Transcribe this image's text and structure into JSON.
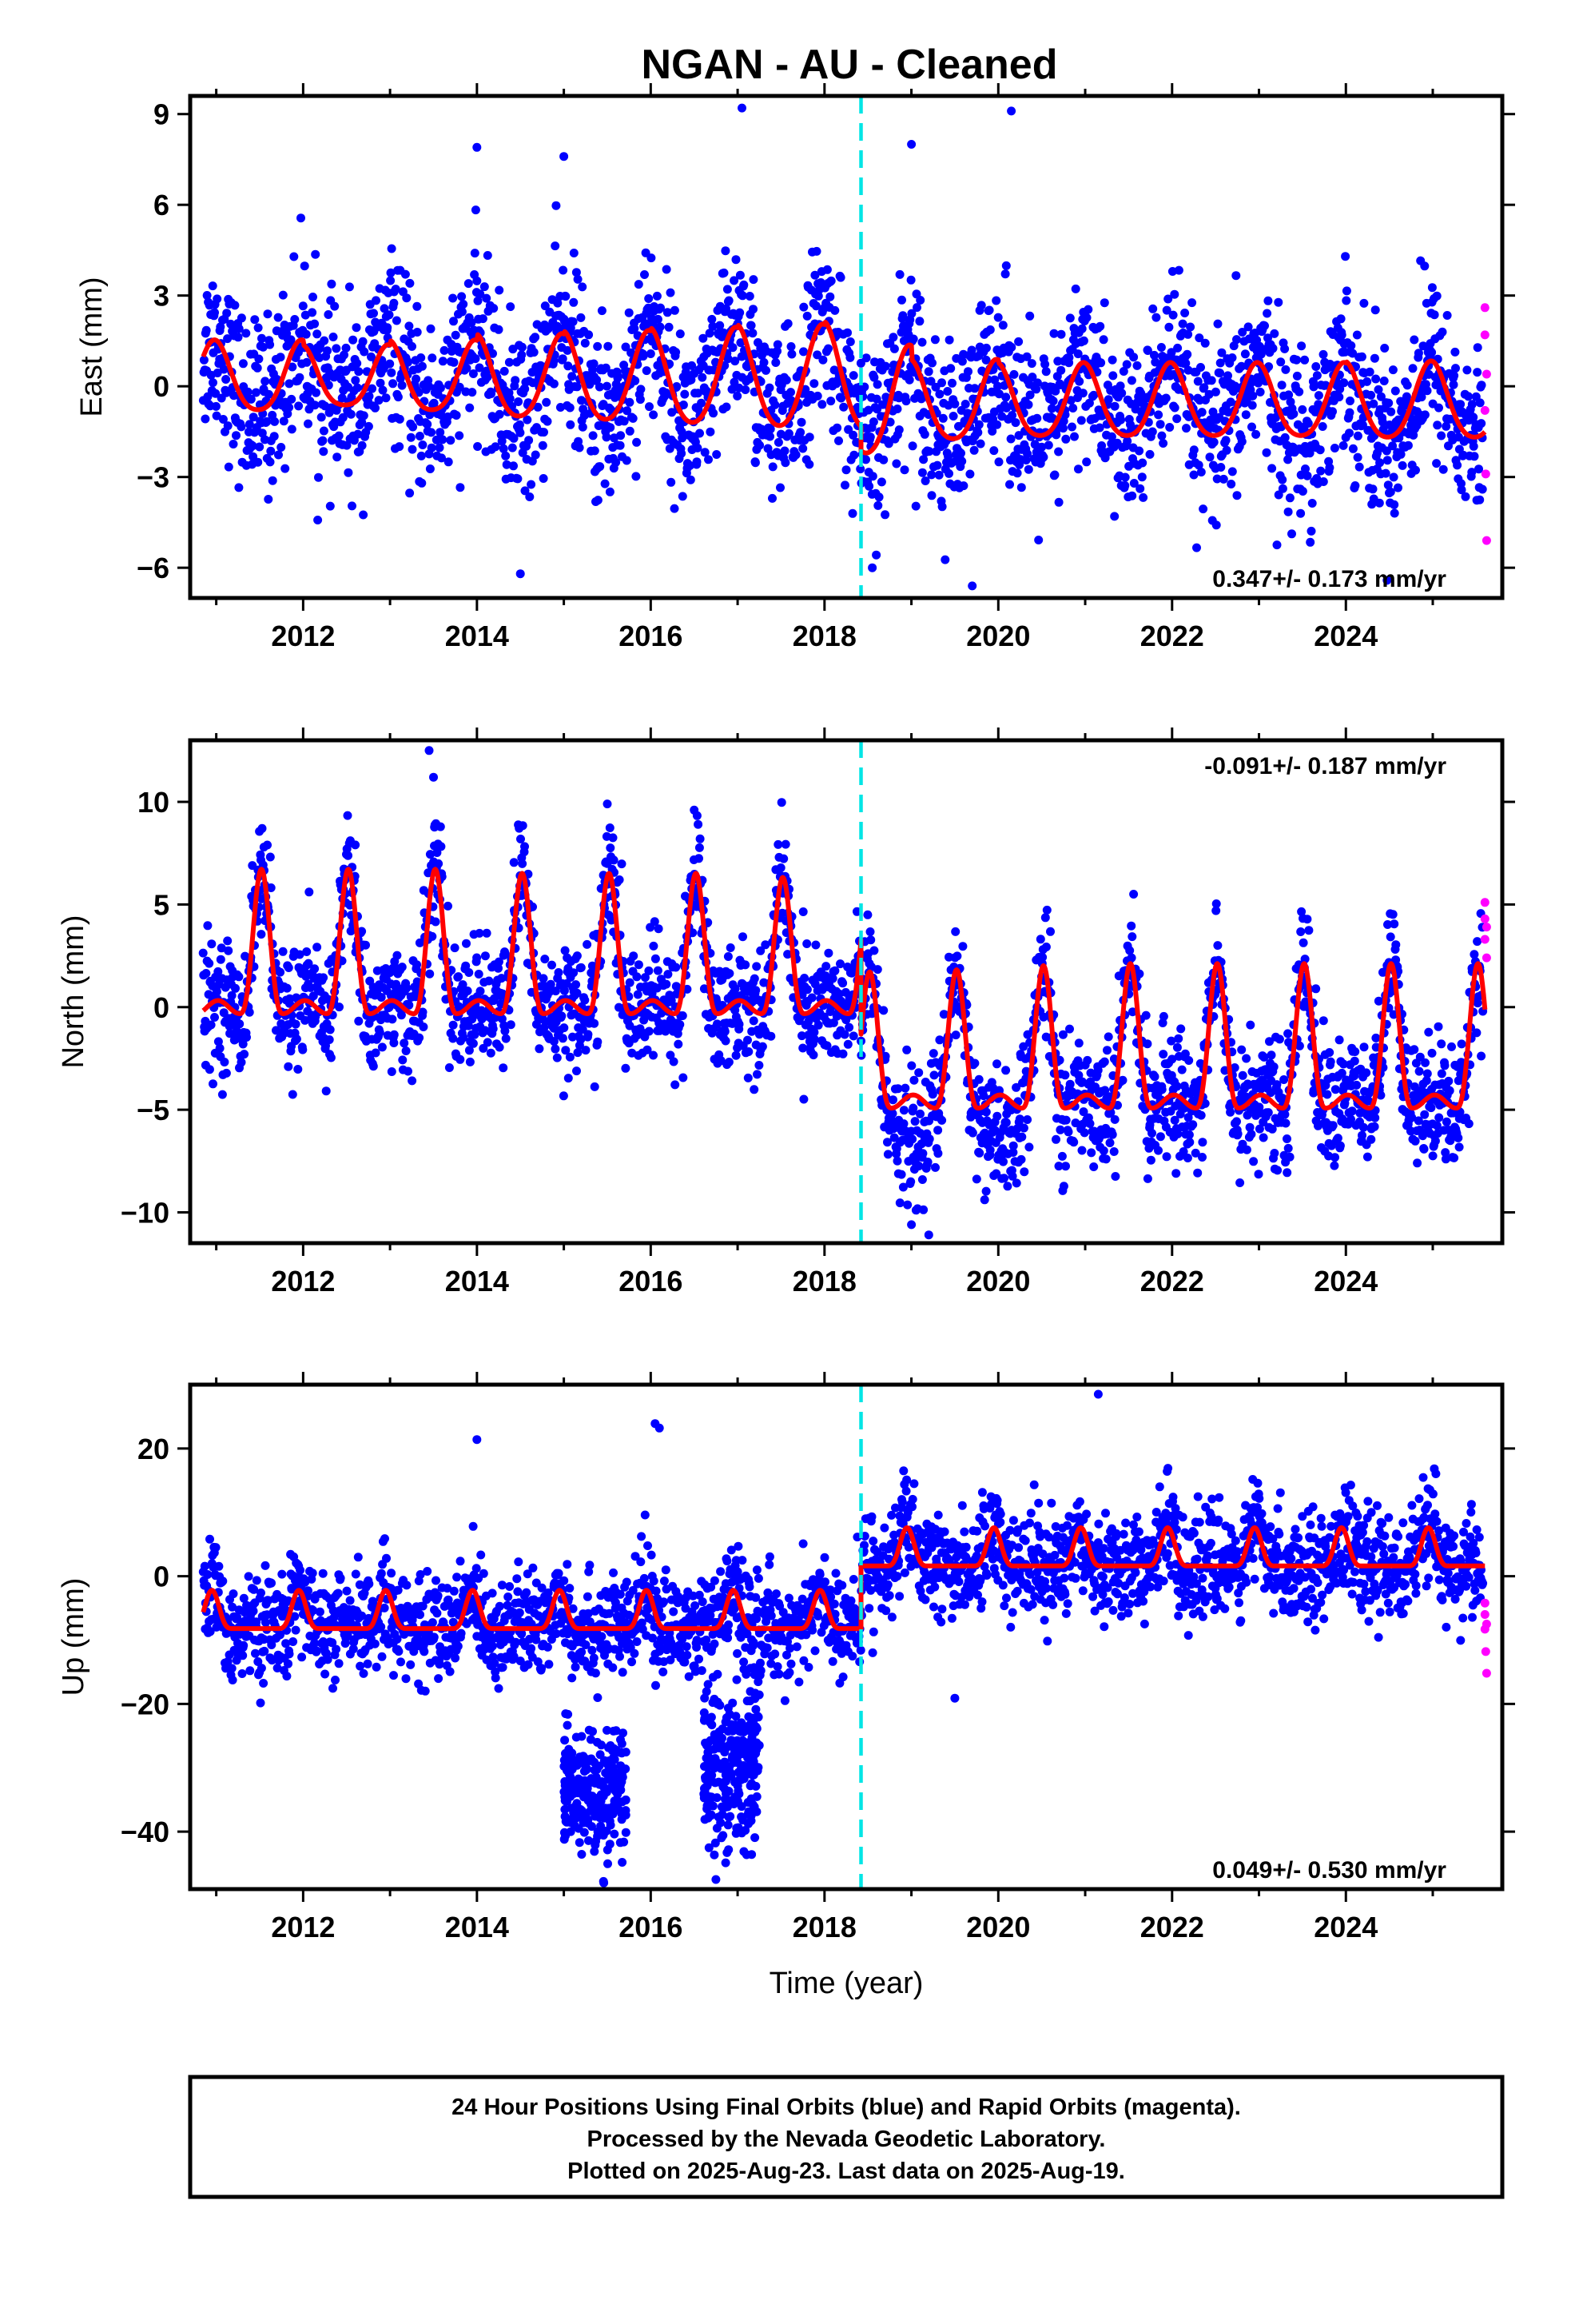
{
  "chart_data": [
    {
      "type": "scatter",
      "title": "NGAN  - AU - Cleaned",
      "ylabel": "East (mm)",
      "xlabel": "",
      "xlim": [
        2010.7,
        2025.8
      ],
      "ylim": [
        -7,
        9.6
      ],
      "x_ticks": [
        2012,
        2014,
        2016,
        2018,
        2020,
        2022,
        2024
      ],
      "y_ticks": [
        -6,
        -3,
        0,
        3,
        6,
        9
      ],
      "rate_label": "0.347+/- 0.173 mm/yr",
      "rate_position": "bottom-right",
      "equipment_change": 2018.42,
      "colors": {
        "final": "#0000ff",
        "rapid": "#ff00ff",
        "model": "#ff0000",
        "break": "#00e5e5"
      },
      "model": {
        "amplitude": [
          2.2,
          1.9,
          2.2,
          2.6,
          2.8,
          3.0,
          3.2,
          3.4,
          2.5,
          2.3,
          2.3,
          2.3,
          2.3,
          2.4,
          2.4
        ],
        "phase_peak": 0.98,
        "offset_before": 0.2,
        "offset_after": -0.6,
        "wobble": 0.6
      },
      "scatter": {
        "noise": 1.4,
        "outliers": [
          [
            2017.05,
            9.2
          ],
          [
            2020.15,
            9.1
          ],
          [
            2019.0,
            8.0
          ],
          [
            2014.0,
            7.9
          ],
          [
            2015.0,
            7.6
          ],
          [
            2019.7,
            -6.6
          ],
          [
            2014.5,
            -6.2
          ],
          [
            2018.55,
            -6.0
          ]
        ]
      },
      "rapid_points": [
        [
          2025.6,
          2.6
        ],
        [
          2025.6,
          1.7
        ],
        [
          2025.62,
          0.4
        ],
        [
          2025.6,
          -0.8
        ],
        [
          2025.61,
          -2.9
        ],
        [
          2025.62,
          -5.1
        ]
      ]
    },
    {
      "type": "scatter",
      "title": "",
      "ylabel": "North (mm)",
      "xlabel": "",
      "xlim": [
        2010.7,
        2025.8
      ],
      "ylim": [
        -11.5,
        13
      ],
      "x_ticks": [
        2012,
        2014,
        2016,
        2018,
        2020,
        2022,
        2024
      ],
      "y_ticks": [
        -10,
        -5,
        0,
        5,
        10
      ],
      "rate_label": "-0.091+/- 0.187 mm/yr",
      "rate_position": "top-right",
      "equipment_change": 2018.42,
      "colors": {
        "final": "#0000ff",
        "rapid": "#ff00ff",
        "model": "#ff0000",
        "break": "#00e5e5"
      },
      "model": {
        "amplitude": [
          6.4,
          6.4,
          6.4,
          6.2,
          6.2,
          6.2,
          6.0,
          6.0,
          6.1,
          6.3,
          6.4,
          6.4,
          6.4,
          6.4,
          6.4
        ],
        "phase_peak": 0.52,
        "offset_before": 0.0,
        "offset_after": -4.6,
        "wobble": 0.8
      },
      "scatter": {
        "noise": 1.5,
        "outliers": [
          [
            2013.45,
            12.5
          ],
          [
            2013.5,
            11.2
          ],
          [
            2019.0,
            -10.6
          ],
          [
            2019.2,
            -11.1
          ],
          [
            2015.5,
            9.9
          ],
          [
            2016.5,
            9.6
          ]
        ]
      },
      "rapid_points": [
        [
          2025.6,
          5.1
        ],
        [
          2025.6,
          4.3
        ],
        [
          2025.62,
          3.9
        ],
        [
          2025.6,
          3.3
        ],
        [
          2025.62,
          2.4
        ]
      ]
    },
    {
      "type": "scatter",
      "title": "",
      "ylabel": "Up (mm)",
      "xlabel": "Time (year)",
      "xlim": [
        2010.7,
        2025.8
      ],
      "ylim": [
        -49,
        30
      ],
      "x_ticks": [
        2012,
        2014,
        2016,
        2018,
        2020,
        2022,
        2024
      ],
      "y_ticks": [
        -40,
        -20,
        0,
        20
      ],
      "rate_label": "0.049+/- 0.530 mm/yr",
      "rate_position": "bottom-right",
      "equipment_change": 2018.42,
      "colors": {
        "final": "#0000ff",
        "rapid": "#ff00ff",
        "model": "#ff0000",
        "break": "#00e5e5"
      },
      "model": {
        "amplitude": [
          6.0,
          6.0,
          6.0,
          6.0,
          6.0,
          6.0,
          6.0,
          6.0,
          6.0,
          6.0,
          6.0,
          6.0,
          6.0,
          6.0,
          6.0
        ],
        "phase_peak": 0.95,
        "offset_before": -8.2,
        "offset_after": 1.6,
        "wobble": 0.0
      },
      "scatter": {
        "noise": 4.0,
        "outliers": [
          [
            2021.15,
            28.5
          ],
          [
            2016.05,
            23.9
          ],
          [
            2016.1,
            23.2
          ],
          [
            2014.0,
            21.4
          ],
          [
            2019.5,
            -19.1
          ],
          [
            2016.75,
            -47.5
          ]
        ]
      },
      "clusters": [
        {
          "start": 2015.0,
          "end": 2015.72,
          "center": -34,
          "spread": 5
        },
        {
          "start": 2016.6,
          "end": 2017.25,
          "center": -30,
          "spread": 6
        }
      ],
      "rapid_points": [
        [
          2025.6,
          -4.2
        ],
        [
          2025.6,
          -6.0
        ],
        [
          2025.62,
          -7.5
        ],
        [
          2025.6,
          -8.3
        ],
        [
          2025.61,
          -11.8
        ],
        [
          2025.62,
          -15.2
        ]
      ]
    }
  ],
  "footer": {
    "line1": "24 Hour Positions Using Final Orbits (blue) and Rapid Orbits (magenta).",
    "line2": "Processed by the Nevada Geodetic Laboratory.",
    "line3": "Plotted on 2025-Aug-23. Last data on 2025-Aug-19."
  }
}
